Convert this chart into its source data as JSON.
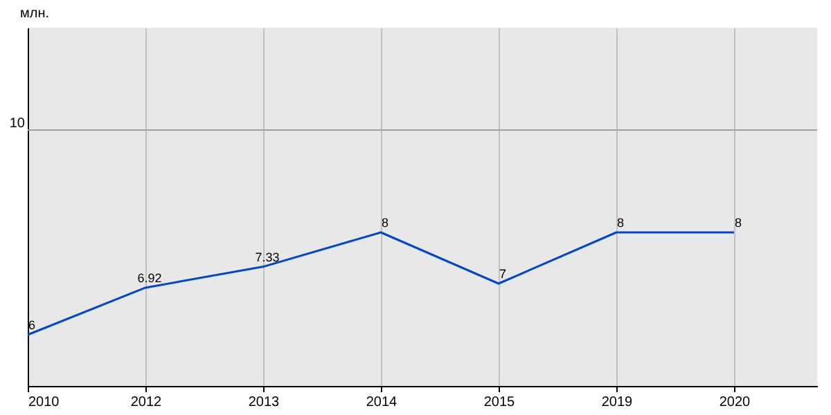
{
  "chart_data": {
    "type": "line",
    "ylabel": "млн.",
    "categories": [
      "2010",
      "2012",
      "2013",
      "2014",
      "2015",
      "2019",
      "2020"
    ],
    "series": [
      {
        "color": "#0047cc",
        "values": [
          6,
          6.92,
          7.33,
          8,
          7,
          8,
          8
        ]
      }
    ],
    "ylim": [
      5,
      12
    ],
    "ref_lines": [
      {
        "axis": "y",
        "value": 10,
        "label": "10",
        "color": "#a0a0a0"
      }
    ],
    "grid": true,
    "data_labels": true,
    "legend": false
  }
}
